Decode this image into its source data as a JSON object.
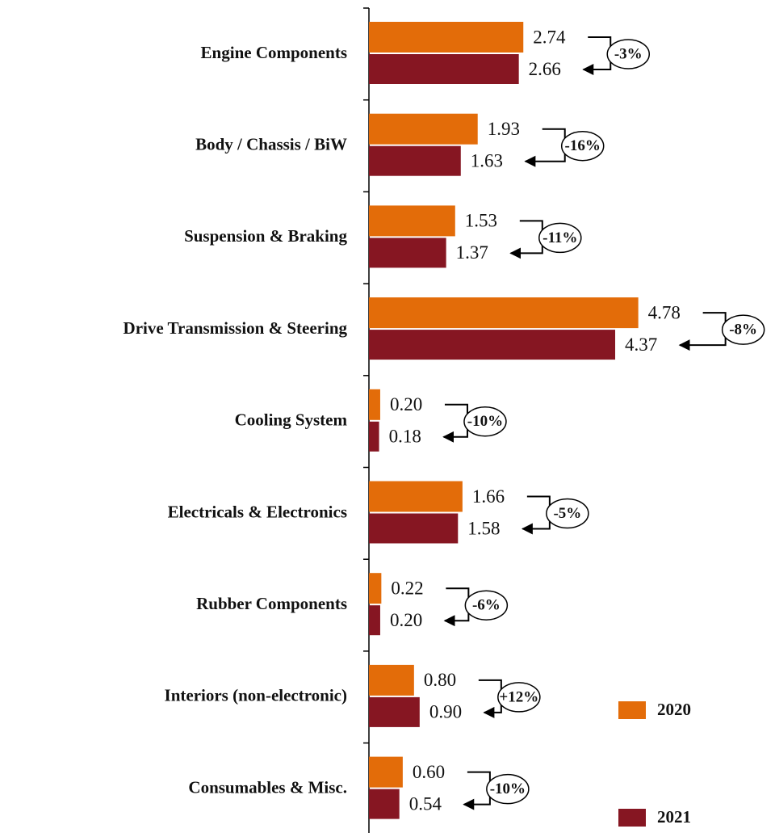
{
  "chart_data": {
    "type": "hbar",
    "categories": [
      "Engine Components",
      "Body / Chassis / BiW",
      "Suspension & Braking",
      "Drive Transmission & Steering",
      "Cooling System",
      "Electricals & Electronics",
      "Rubber Components",
      "Interiors (non-electronic)",
      "Consumables & Misc."
    ],
    "series": [
      {
        "name": "2020",
        "color": "#e36c09",
        "values": [
          2.74,
          1.93,
          1.53,
          4.78,
          0.2,
          1.66,
          0.22,
          0.8,
          0.6
        ],
        "value_labels": [
          "2.74",
          "1.93",
          "1.53",
          "4.78",
          "0.20",
          "1.66",
          "0.22",
          "0.80",
          "0.60"
        ]
      },
      {
        "name": "2021",
        "color": "#861622",
        "values": [
          2.66,
          1.63,
          1.37,
          4.37,
          0.18,
          1.58,
          0.2,
          0.9,
          0.54
        ],
        "value_labels": [
          "2.66",
          "1.63",
          "1.37",
          "4.37",
          "0.18",
          "1.58",
          "0.20",
          "0.90",
          "0.54"
        ]
      }
    ],
    "changes": [
      "-3%",
      "-16%",
      "-11%",
      "-8%",
      "-10%",
      "-5%",
      "-6%",
      "+12%",
      "-10%"
    ],
    "xlim": [
      0,
      5
    ]
  }
}
